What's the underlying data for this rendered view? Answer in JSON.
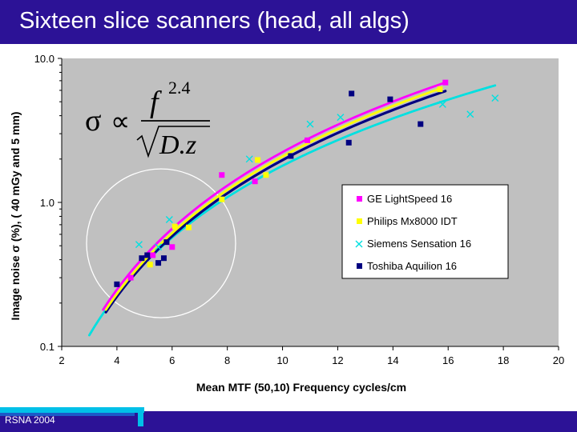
{
  "header": {
    "title": "Sixteen slice scanners (head, all algs)"
  },
  "footer": {
    "text": "RSNA 2004"
  },
  "colors": {
    "title_bar": "#2c1296",
    "plot_bg": "#c0c0c0",
    "accent_cyan": "#00c0e8"
  },
  "formula": {
    "lhs": "σ",
    "relation": "∝",
    "numerator": "f",
    "exponent": "2.4",
    "denominator": "D.z"
  },
  "chart_data": {
    "type": "scatter",
    "title": "",
    "xlabel": "Mean MTF (50,10)  Frequency cycles/cm",
    "ylabel": "Image noise σ (%), ( 40 mGy and 5 mm)",
    "xlim": [
      2,
      20
    ],
    "ylim": [
      0.1,
      10
    ],
    "y_scale": "log",
    "x_ticks": [
      "2",
      "4",
      "6",
      "8",
      "10",
      "12",
      "14",
      "16",
      "18",
      "20"
    ],
    "y_ticks": [
      "0.1",
      "1.0",
      "10.0"
    ],
    "grid": false,
    "legend_position": "right-middle",
    "series": [
      {
        "name": "GE LightSpeed 16",
        "color": "#ff00ff",
        "marker": "square",
        "points": [
          [
            4.5,
            0.3
          ],
          [
            5.3,
            0.43
          ],
          [
            6.0,
            0.49
          ],
          [
            7.8,
            1.55
          ],
          [
            9.0,
            1.4
          ],
          [
            10.9,
            2.7
          ],
          [
            15.9,
            6.8
          ]
        ],
        "fit": {
          "x_start": 3.5,
          "x_end": 15.9,
          "coef": 0.0089,
          "exponent": 2.4
        }
      },
      {
        "name": "Philips Mx8000 IDT",
        "color": "#ffff00",
        "marker": "square",
        "points": [
          [
            5.2,
            0.37
          ],
          [
            6.1,
            0.68
          ],
          [
            6.6,
            0.67
          ],
          [
            7.8,
            1.05
          ],
          [
            9.1,
            1.97
          ],
          [
            9.4,
            1.55
          ],
          [
            15.7,
            6.1
          ]
        ],
        "fit": {
          "x_start": 3.6,
          "x_end": 15.7,
          "coef": 0.0083,
          "exponent": 2.4
        }
      },
      {
        "name": "Siemens Sensation 16",
        "color": "#00e0e0",
        "marker": "x",
        "points": [
          [
            4.8,
            0.51
          ],
          [
            5.5,
            0.49
          ],
          [
            5.9,
            0.76
          ],
          [
            8.8,
            2.0
          ],
          [
            11.0,
            3.5
          ],
          [
            12.1,
            3.9
          ],
          [
            15.8,
            4.8
          ],
          [
            16.8,
            4.1
          ],
          [
            17.7,
            5.3
          ]
        ],
        "fit": {
          "x_start": 3.0,
          "x_end": 17.7,
          "coef": 0.0101,
          "exponent": 2.25
        }
      },
      {
        "name": "Toshiba Aquilion 16",
        "color": "#000080",
        "marker": "square",
        "points": [
          [
            4.0,
            0.27
          ],
          [
            4.9,
            0.41
          ],
          [
            5.1,
            0.43
          ],
          [
            5.5,
            0.38
          ],
          [
            5.7,
            0.41
          ],
          [
            5.8,
            0.53
          ],
          [
            10.3,
            2.1
          ],
          [
            12.4,
            2.6
          ],
          [
            12.5,
            5.7
          ],
          [
            13.9,
            5.2
          ],
          [
            15.0,
            3.5
          ]
        ],
        "fit": {
          "x_start": 3.6,
          "x_end": 15.9,
          "coef": 0.0082,
          "exponent": 2.38
        }
      }
    ]
  }
}
